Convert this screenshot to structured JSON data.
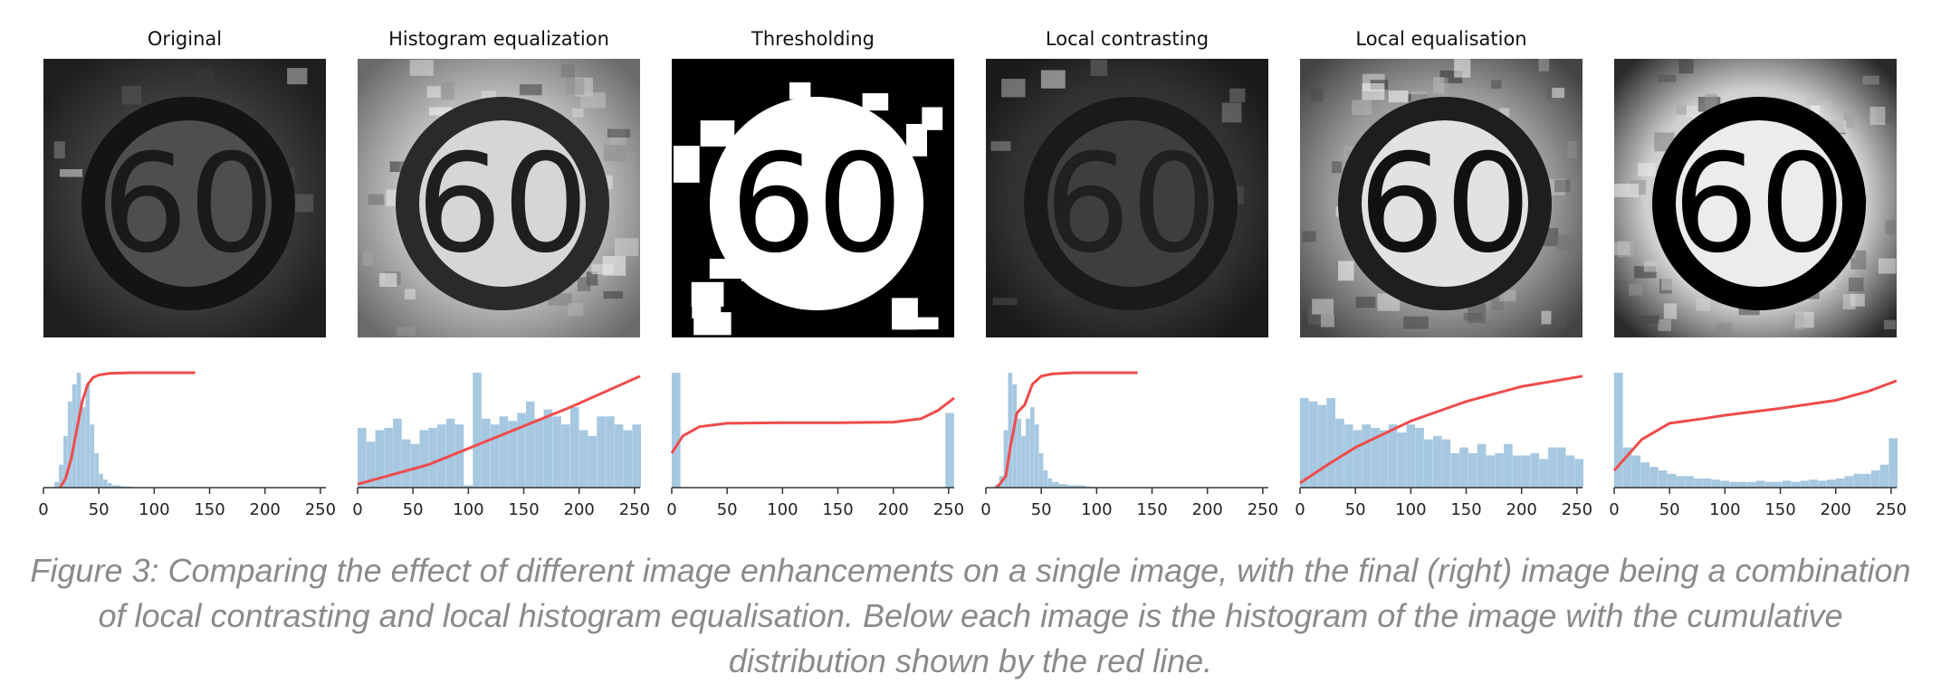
{
  "figure": {
    "caption": "Figure 3: Comparing the effect of different image enhancements on a single image, with the final (right) image being a combination of local contrasting and local histogram equalisation. Below each image is the histogram of the image with the cumulative distribution shown by the red line."
  },
  "colors": {
    "histogram_bar": "#a6c8e0",
    "cdf_line": "#ef4b4b",
    "axis": "#333333",
    "caption_text": "#8a8a8a"
  },
  "chart_data": [
    {
      "type": "bar",
      "title": "Original",
      "image": "grayscale speed limit sign 60, dark low contrast",
      "xlim": [
        0,
        255
      ],
      "x_ticks": [
        "0",
        "50",
        "100",
        "150",
        "200",
        "250"
      ],
      "bins": [
        10,
        14,
        18,
        22,
        26,
        30,
        34,
        38,
        42,
        46,
        50,
        54,
        58,
        62,
        70,
        80
      ],
      "counts": [
        0.05,
        0.2,
        0.45,
        0.75,
        0.9,
        1.0,
        0.7,
        0.9,
        0.55,
        0.3,
        0.12,
        0.07,
        0.04,
        0.02,
        0.01,
        0.005
      ],
      "cdf": {
        "x": [
          15,
          20,
          25,
          30,
          35,
          40,
          45,
          50,
          60,
          80,
          137
        ],
        "y": [
          0,
          0.08,
          0.25,
          0.5,
          0.75,
          0.9,
          0.96,
          0.98,
          0.995,
          1.0,
          1.0
        ]
      }
    },
    {
      "type": "bar",
      "title": "Histogram equalization",
      "image": "grayscale speed limit sign 60, globally equalized",
      "xlim": [
        0,
        255
      ],
      "x_ticks": [
        "0",
        "50",
        "100",
        "150",
        "200",
        "250"
      ],
      "bins": [
        0,
        8,
        16,
        24,
        32,
        40,
        48,
        56,
        64,
        72,
        80,
        88,
        96,
        104,
        112,
        120,
        128,
        136,
        144,
        152,
        160,
        168,
        176,
        184,
        192,
        200,
        208,
        216,
        224,
        232,
        240,
        248
      ],
      "counts": [
        0.52,
        0.4,
        0.5,
        0.52,
        0.6,
        0.42,
        0.38,
        0.5,
        0.52,
        0.55,
        0.6,
        0.55,
        0.02,
        1.0,
        0.6,
        0.55,
        0.62,
        0.58,
        0.65,
        0.75,
        0.6,
        0.68,
        0.62,
        0.55,
        0.7,
        0.5,
        0.45,
        0.62,
        0.62,
        0.55,
        0.5,
        0.55
      ],
      "cdf": {
        "x": [
          0,
          64,
          128,
          192,
          255
        ],
        "y": [
          0.03,
          0.2,
          0.45,
          0.7,
          0.97
        ]
      }
    },
    {
      "type": "bar",
      "title": "Thresholding",
      "image": "binary black and white speed limit sign 60",
      "xlim": [
        0,
        255
      ],
      "x_ticks": [
        "0",
        "50",
        "100",
        "150",
        "200",
        "250"
      ],
      "bins": [
        0,
        247
      ],
      "counts": [
        1.0,
        0.65
      ],
      "cdf": {
        "x": [
          0,
          10,
          25,
          50,
          100,
          150,
          200,
          225,
          240,
          255
        ],
        "y": [
          0.3,
          0.45,
          0.53,
          0.56,
          0.565,
          0.565,
          0.57,
          0.6,
          0.67,
          0.78
        ]
      }
    },
    {
      "type": "bar",
      "title": "Local contrasting",
      "image": "grayscale speed limit sign 60, local contrast applied",
      "xlim": [
        0,
        255
      ],
      "x_ticks": [
        "0",
        "50",
        "100",
        "150",
        "200",
        "250"
      ],
      "bins": [
        8,
        12,
        16,
        20,
        24,
        28,
        32,
        36,
        40,
        44,
        48,
        52,
        56,
        60,
        66,
        74,
        90
      ],
      "counts": [
        0.03,
        0.1,
        0.5,
        1.0,
        0.9,
        0.6,
        0.45,
        0.6,
        0.7,
        0.55,
        0.3,
        0.15,
        0.08,
        0.05,
        0.03,
        0.02,
        0.01
      ],
      "cdf": {
        "x": [
          10,
          18,
          22,
          28,
          35,
          42,
          50,
          60,
          80,
          137
        ],
        "y": [
          0,
          0.1,
          0.35,
          0.65,
          0.72,
          0.9,
          0.97,
          0.99,
          1.0,
          1.0
        ]
      }
    },
    {
      "type": "bar",
      "title": "Local equalisation",
      "image": "grayscale speed limit sign 60, local histogram equalization",
      "xlim": [
        0,
        255
      ],
      "x_ticks": [
        "0",
        "50",
        "100",
        "150",
        "200",
        "250"
      ],
      "bins": [
        0,
        8,
        16,
        24,
        32,
        40,
        48,
        56,
        64,
        72,
        80,
        88,
        96,
        104,
        112,
        120,
        128,
        136,
        144,
        152,
        160,
        168,
        176,
        184,
        192,
        200,
        208,
        216,
        224,
        232,
        240,
        248
      ],
      "counts": [
        0.78,
        0.75,
        0.72,
        0.78,
        0.6,
        0.55,
        0.5,
        0.55,
        0.52,
        0.5,
        0.55,
        0.48,
        0.55,
        0.52,
        0.42,
        0.45,
        0.42,
        0.3,
        0.35,
        0.3,
        0.38,
        0.28,
        0.3,
        0.38,
        0.28,
        0.28,
        0.3,
        0.25,
        0.35,
        0.35,
        0.28,
        0.25
      ],
      "cdf": {
        "x": [
          0,
          25,
          50,
          100,
          150,
          200,
          255
        ],
        "y": [
          0.04,
          0.2,
          0.35,
          0.58,
          0.75,
          0.88,
          0.97
        ]
      }
    },
    {
      "type": "bar",
      "title": "",
      "image": "combination of local contrasting and local equalisation, speed limit sign 60",
      "xlim": [
        0,
        255
      ],
      "x_ticks": [
        "0",
        "50",
        "100",
        "150",
        "200",
        "250"
      ],
      "bins": [
        0,
        8,
        16,
        24,
        32,
        40,
        48,
        56,
        64,
        72,
        80,
        88,
        96,
        104,
        112,
        120,
        128,
        136,
        144,
        152,
        160,
        168,
        176,
        184,
        192,
        200,
        208,
        216,
        224,
        232,
        240,
        248
      ],
      "counts": [
        1.0,
        0.35,
        0.28,
        0.22,
        0.18,
        0.15,
        0.12,
        0.1,
        0.1,
        0.08,
        0.08,
        0.07,
        0.06,
        0.05,
        0.05,
        0.05,
        0.06,
        0.05,
        0.05,
        0.06,
        0.05,
        0.06,
        0.07,
        0.06,
        0.07,
        0.08,
        0.1,
        0.12,
        0.12,
        0.15,
        0.2,
        0.43
      ],
      "cdf": {
        "x": [
          0,
          25,
          50,
          80,
          100,
          150,
          200,
          230,
          255
        ],
        "y": [
          0.15,
          0.42,
          0.56,
          0.6,
          0.63,
          0.69,
          0.76,
          0.84,
          0.93
        ]
      }
    }
  ]
}
